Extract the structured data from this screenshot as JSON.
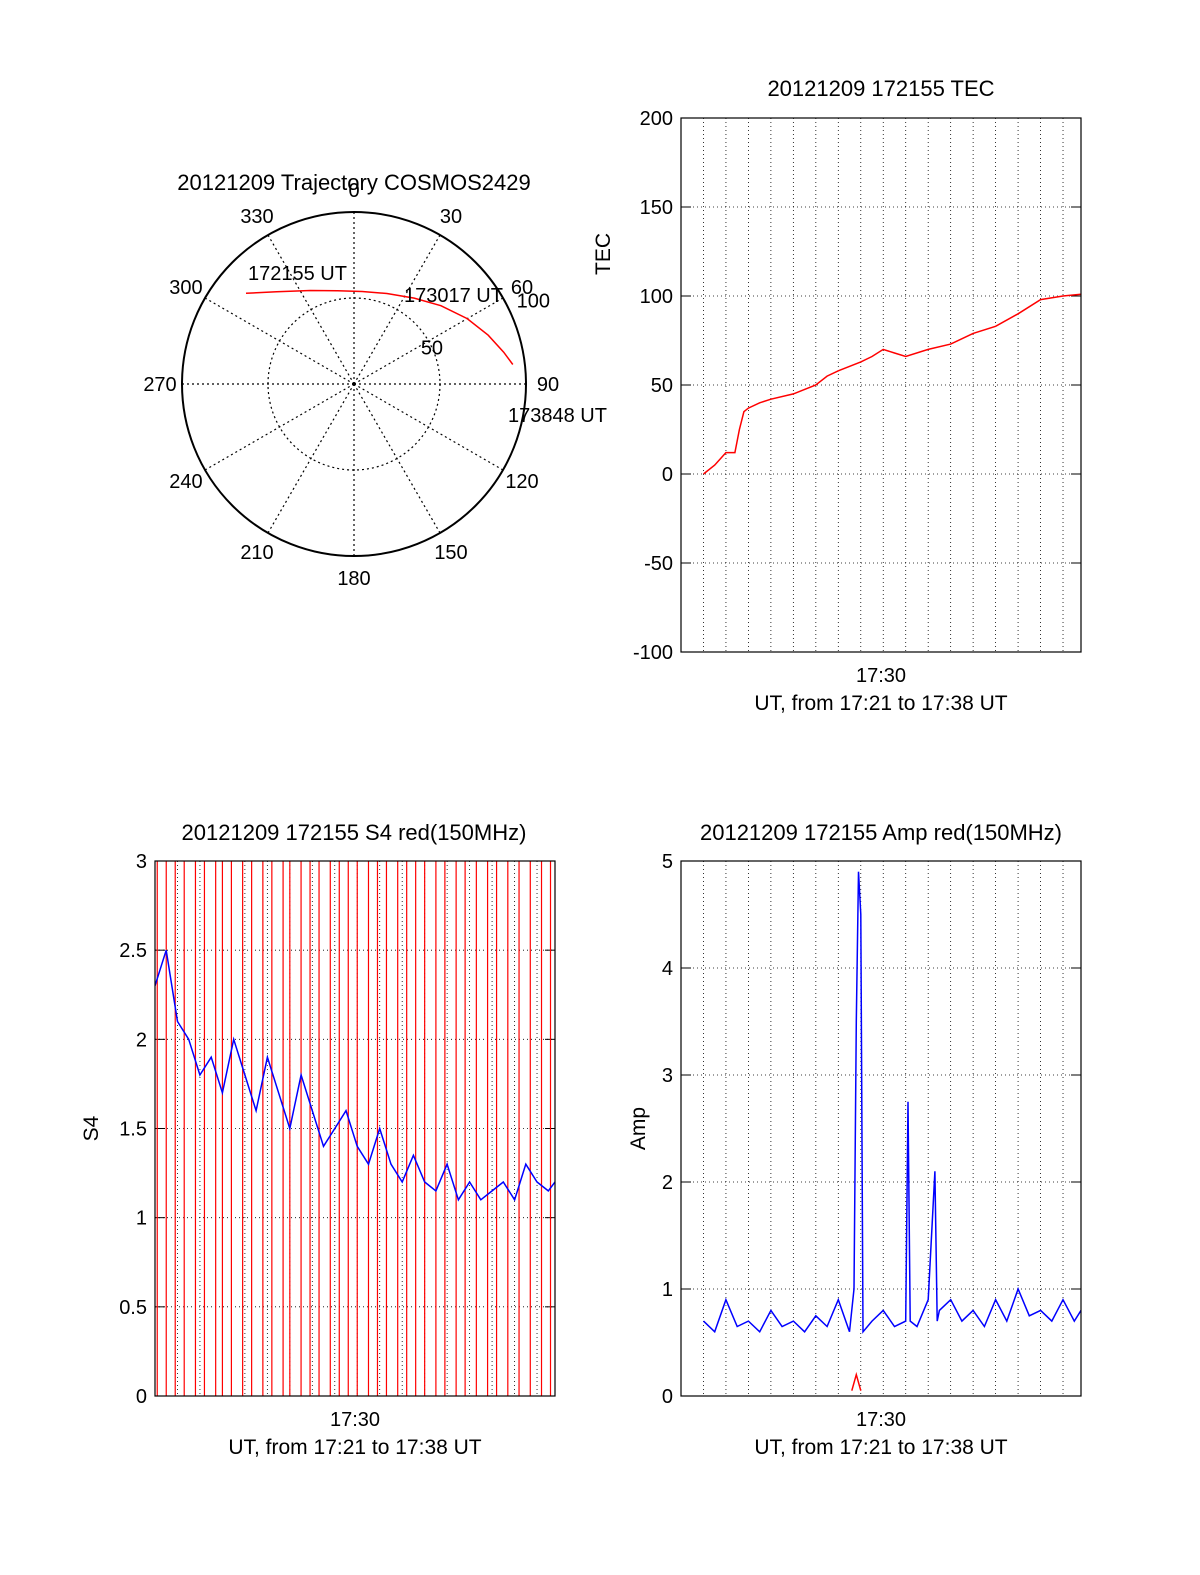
{
  "colors": {
    "red": "#ff0000",
    "blue": "#0000ff",
    "axis": "#000000",
    "grid": "#000000"
  },
  "chart_data": [
    {
      "id": "trajectory",
      "type": "polar",
      "title": "20121209 Trajectory COSMOS2429",
      "azimuth_labels": [
        "0",
        "30",
        "60",
        "90",
        "120",
        "150",
        "180",
        "210",
        "240",
        "270",
        "300",
        "330"
      ],
      "ring_labels": [
        "50",
        "100"
      ],
      "rlim": [
        0,
        100
      ],
      "grid": true,
      "track": {
        "color": "#ff0000",
        "points": [
          {
            "az": 310,
            "r": 82
          },
          {
            "az": 320,
            "r": 70
          },
          {
            "az": 335,
            "r": 60
          },
          {
            "az": 350,
            "r": 55
          },
          {
            "az": 5,
            "r": 54
          },
          {
            "az": 20,
            "r": 56
          },
          {
            "az": 35,
            "r": 61
          },
          {
            "az": 48,
            "r": 68
          },
          {
            "az": 60,
            "r": 76
          },
          {
            "az": 70,
            "r": 83
          },
          {
            "az": 78,
            "r": 89
          },
          {
            "az": 83,
            "r": 93
          }
        ]
      },
      "annotations": [
        "172155 UT",
        "173017 UT",
        "173848 UT"
      ]
    },
    {
      "id": "tec",
      "type": "line",
      "title": "20121209 172155 TEC",
      "ylabel": "TEC",
      "xlabel": "UT, from 17:21 to 17:38 UT",
      "xtick_label": "17:30",
      "ylim": [
        -100,
        200
      ],
      "yticks": [
        "-100",
        "-50",
        "0",
        "50",
        "100",
        "150",
        "200"
      ],
      "xlim": [
        0,
        17.8
      ],
      "grid": true,
      "series": [
        {
          "color": "#ff0000",
          "x": [
            1.0,
            1.5,
            2.0,
            2.4,
            2.6,
            2.8,
            3.0,
            3.5,
            4.0,
            5.0,
            6.0,
            6.5,
            7.0,
            8.0,
            8.5,
            9.0,
            9.5,
            10.0,
            11.0,
            12.0,
            13.0,
            14.0,
            15.0,
            16.0,
            17.0,
            17.8
          ],
          "y": [
            0,
            5,
            12,
            12,
            25,
            35,
            37,
            40,
            42,
            45,
            50,
            55,
            58,
            63,
            66,
            70,
            68,
            66,
            70,
            73,
            79,
            83,
            90,
            98,
            100,
            101
          ]
        }
      ]
    },
    {
      "id": "s4",
      "type": "line",
      "title": "20121209 172155 S4 red(150MHz)",
      "ylabel": "S4",
      "xlabel": "UT, from 17:21 to 17:38 UT",
      "xtick_label": "17:30",
      "ylim": [
        0,
        3
      ],
      "yticks": [
        "0",
        "0.5",
        "1",
        "1.5",
        "2",
        "2.5",
        "3"
      ],
      "xlim": [
        0,
        17.8
      ],
      "grid": true,
      "series": [
        {
          "color": "#ff0000",
          "style": "spikes",
          "x": [
            0.1,
            0.5,
            0.9,
            1.3,
            1.8,
            2.2,
            2.7,
            3.0,
            3.4,
            3.9,
            4.3,
            4.8,
            5.2,
            5.7,
            6.0,
            6.5,
            6.9,
            7.3,
            7.8,
            8.2,
            8.6,
            9.0,
            9.5,
            9.9,
            10.3,
            10.8,
            11.2,
            11.6,
            12.0,
            12.5,
            12.9,
            13.4,
            13.8,
            14.3,
            14.8,
            15.2,
            15.7,
            16.2,
            16.7,
            17.2,
            17.6
          ],
          "y": [
            3,
            3,
            3,
            3,
            3,
            3,
            3,
            3,
            3,
            3,
            3,
            3,
            3,
            3,
            3,
            3,
            3,
            3,
            3,
            3,
            3,
            3,
            3,
            3,
            3,
            3,
            3,
            3,
            3,
            3,
            3,
            3,
            3,
            3,
            3,
            3,
            3,
            3,
            3,
            3,
            3
          ]
        },
        {
          "color": "#0000ff",
          "x": [
            0.0,
            0.5,
            1.0,
            1.5,
            2.0,
            2.5,
            3.0,
            3.5,
            4.0,
            4.5,
            5.0,
            5.5,
            6.0,
            6.5,
            7.0,
            7.5,
            8.0,
            8.5,
            9.0,
            9.5,
            10.0,
            10.5,
            11.0,
            11.5,
            12.0,
            12.5,
            13.0,
            13.5,
            14.0,
            14.5,
            15.0,
            15.5,
            16.0,
            16.5,
            17.0,
            17.5,
            17.8
          ],
          "y": [
            2.3,
            2.5,
            2.1,
            2.0,
            1.8,
            1.9,
            1.7,
            2.0,
            1.8,
            1.6,
            1.9,
            1.7,
            1.5,
            1.8,
            1.6,
            1.4,
            1.5,
            1.6,
            1.4,
            1.3,
            1.5,
            1.3,
            1.2,
            1.35,
            1.2,
            1.15,
            1.3,
            1.1,
            1.2,
            1.1,
            1.15,
            1.2,
            1.1,
            1.3,
            1.2,
            1.15,
            1.2
          ]
        }
      ]
    },
    {
      "id": "amp",
      "type": "line",
      "title": "20121209 172155 Amp red(150MHz)",
      "ylabel": "Amp",
      "xlabel": "UT, from 17:21 to 17:38 UT",
      "xtick_label": "17:30",
      "ylim": [
        0,
        5
      ],
      "yticks": [
        "0",
        "1",
        "2",
        "3",
        "4",
        "5"
      ],
      "xlim": [
        0,
        17.8
      ],
      "grid": true,
      "series": [
        {
          "color": "#0000ff",
          "x": [
            1.0,
            1.5,
            2.0,
            2.5,
            3.0,
            3.5,
            4.0,
            4.5,
            5.0,
            5.5,
            6.0,
            6.5,
            7.0,
            7.5,
            7.7,
            7.8,
            7.9,
            8.0,
            8.1,
            8.5,
            9.0,
            9.5,
            10.0,
            10.1,
            10.2,
            10.5,
            11.0,
            11.3,
            11.4,
            11.5,
            12.0,
            12.5,
            13.0,
            13.5,
            14.0,
            14.5,
            15.0,
            15.5,
            16.0,
            16.5,
            17.0,
            17.5,
            17.8
          ],
          "y": [
            0.7,
            0.6,
            0.9,
            0.65,
            0.7,
            0.6,
            0.8,
            0.65,
            0.7,
            0.6,
            0.75,
            0.65,
            0.9,
            0.6,
            1.0,
            3.5,
            4.9,
            4.5,
            0.6,
            0.7,
            0.8,
            0.65,
            0.7,
            2.75,
            0.7,
            0.65,
            0.9,
            2.1,
            0.7,
            0.8,
            0.9,
            0.7,
            0.8,
            0.65,
            0.9,
            0.7,
            1.0,
            0.75,
            0.8,
            0.7,
            0.9,
            0.7,
            0.8
          ]
        },
        {
          "color": "#ff0000",
          "x": [
            7.6,
            7.8,
            8.0
          ],
          "y": [
            0.05,
            0.2,
            0.05
          ]
        }
      ]
    }
  ]
}
